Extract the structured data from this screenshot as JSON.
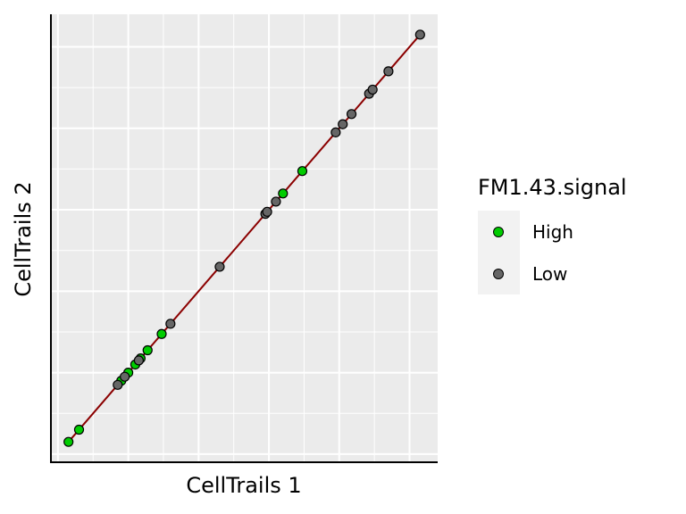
{
  "chart_data": {
    "type": "scatter",
    "xlabel": "CellTrails 1",
    "ylabel": "CellTrails 2",
    "xlim": [
      -0.2,
      10.8
    ],
    "ylim": [
      -0.2,
      10.8
    ],
    "grid": true,
    "x_tick_labels_shown": false,
    "y_tick_labels_shown": false,
    "legend": {
      "title": "FM1.43.signal",
      "position": "right",
      "entries": [
        {
          "label": "High",
          "color": "#00cc00"
        },
        {
          "label": "Low",
          "color": "#666666"
        }
      ]
    },
    "fit_line": {
      "color": "#8b0000",
      "from": [
        0.3,
        0.3
      ],
      "to": [
        10.3,
        10.3
      ]
    },
    "series": [
      {
        "name": "High",
        "color": "#00cc00",
        "points": [
          [
            0.3,
            0.3
          ],
          [
            0.6,
            0.6
          ],
          [
            1.8,
            1.8
          ],
          [
            2.0,
            2.0
          ],
          [
            2.2,
            2.2
          ],
          [
            2.35,
            2.35
          ],
          [
            2.55,
            2.55
          ],
          [
            2.95,
            2.95
          ],
          [
            6.4,
            6.4
          ],
          [
            6.95,
            6.95
          ]
        ]
      },
      {
        "name": "Low",
        "color": "#666666",
        "points": [
          [
            1.7,
            1.7
          ],
          [
            1.9,
            1.9
          ],
          [
            2.3,
            2.3
          ],
          [
            3.2,
            3.2
          ],
          [
            4.6,
            4.6
          ],
          [
            5.9,
            5.9
          ],
          [
            5.95,
            5.95
          ],
          [
            6.2,
            6.2
          ],
          [
            7.9,
            7.9
          ],
          [
            8.1,
            8.1
          ],
          [
            8.35,
            8.35
          ],
          [
            8.85,
            8.85
          ],
          [
            8.95,
            8.95
          ],
          [
            9.4,
            9.4
          ],
          [
            10.3,
            10.3
          ]
        ]
      }
    ]
  }
}
